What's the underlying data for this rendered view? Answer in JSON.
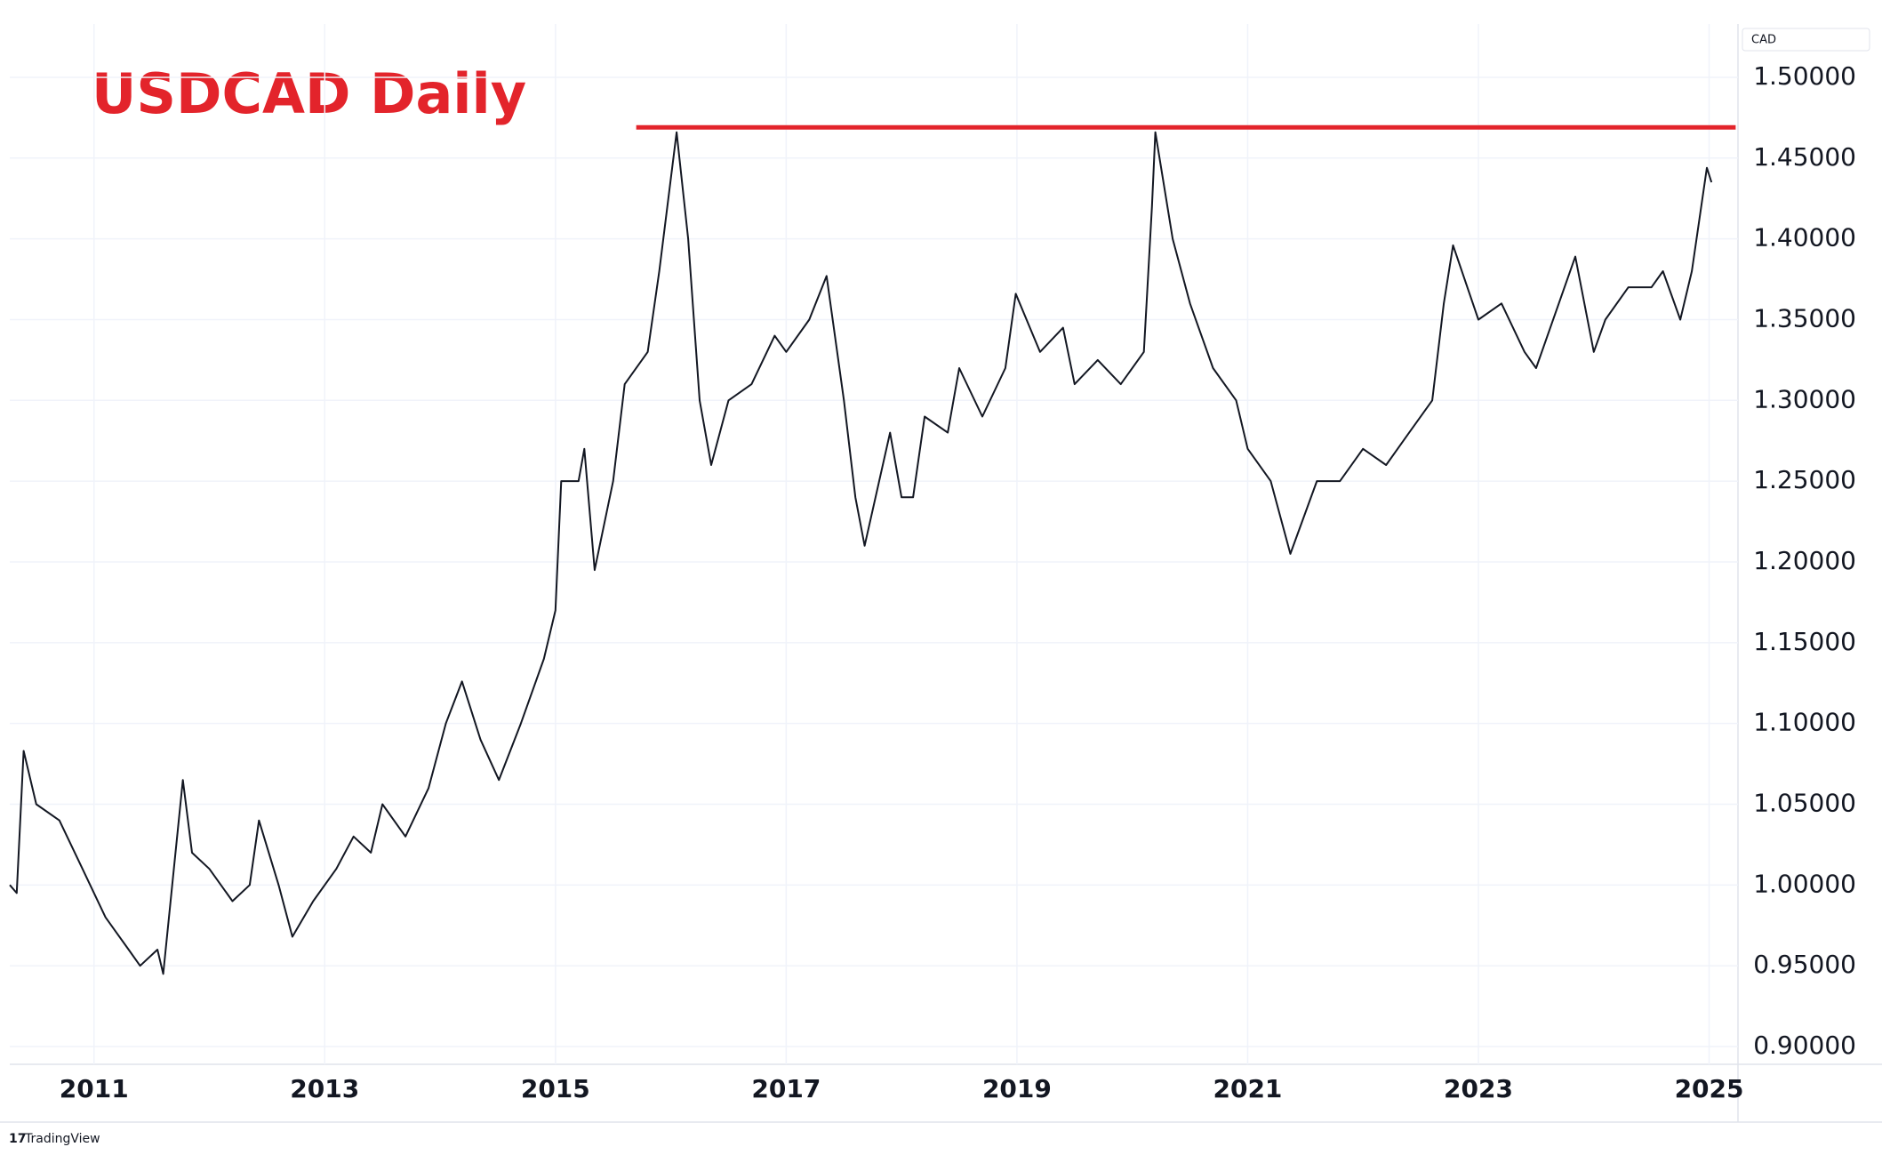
{
  "chart_data": {
    "type": "line",
    "title": "USDCAD Daily",
    "currency": "CAD",
    "watermark": "TradingView",
    "x": [
      2010.27,
      2010.33,
      2010.39,
      2010.5,
      2010.7,
      2010.9,
      2011.1,
      2011.3,
      2011.4,
      2011.55,
      2011.6,
      2011.77,
      2011.85,
      2012.0,
      2012.2,
      2012.35,
      2012.43,
      2012.6,
      2012.72,
      2012.9,
      2013.1,
      2013.25,
      2013.4,
      2013.5,
      2013.7,
      2013.9,
      2014.05,
      2014.19,
      2014.35,
      2014.51,
      2014.7,
      2014.9,
      2015.0,
      2015.05,
      2015.2,
      2015.25,
      2015.34,
      2015.5,
      2015.6,
      2015.8,
      2015.9,
      2016.05,
      2016.15,
      2016.25,
      2016.35,
      2016.5,
      2016.7,
      2016.9,
      2017.0,
      2017.2,
      2017.35,
      2017.5,
      2017.6,
      2017.68,
      2017.9,
      2018.0,
      2018.1,
      2018.2,
      2018.4,
      2018.5,
      2018.7,
      2018.9,
      2018.99,
      2019.2,
      2019.4,
      2019.5,
      2019.7,
      2019.9,
      2020.1,
      2020.17,
      2020.2,
      2020.35,
      2020.5,
      2020.7,
      2020.9,
      2021.0,
      2021.2,
      2021.37,
      2021.6,
      2021.8,
      2022.0,
      2022.2,
      2022.4,
      2022.6,
      2022.7,
      2022.78,
      2023.0,
      2023.2,
      2023.4,
      2023.5,
      2023.84,
      2024.0,
      2024.1,
      2024.3,
      2024.5,
      2024.6,
      2024.75,
      2024.85,
      2024.98,
      2025.02
    ],
    "values": [
      1.0,
      0.995,
      1.083,
      1.05,
      1.04,
      1.01,
      0.98,
      0.96,
      0.95,
      0.96,
      0.945,
      1.065,
      1.02,
      1.01,
      0.99,
      1.0,
      1.04,
      1.0,
      0.968,
      0.99,
      1.01,
      1.03,
      1.02,
      1.05,
      1.03,
      1.06,
      1.1,
      1.126,
      1.09,
      1.065,
      1.1,
      1.14,
      1.17,
      1.25,
      1.25,
      1.27,
      1.195,
      1.25,
      1.31,
      1.33,
      1.38,
      1.466,
      1.4,
      1.3,
      1.26,
      1.3,
      1.31,
      1.34,
      1.33,
      1.35,
      1.377,
      1.3,
      1.24,
      1.21,
      1.28,
      1.24,
      1.24,
      1.29,
      1.28,
      1.32,
      1.29,
      1.32,
      1.366,
      1.33,
      1.345,
      1.31,
      1.325,
      1.31,
      1.33,
      1.42,
      1.466,
      1.4,
      1.36,
      1.32,
      1.3,
      1.27,
      1.25,
      1.205,
      1.25,
      1.25,
      1.27,
      1.26,
      1.28,
      1.3,
      1.36,
      1.396,
      1.35,
      1.36,
      1.33,
      1.32,
      1.389,
      1.33,
      1.35,
      1.37,
      1.37,
      1.38,
      1.35,
      1.38,
      1.444,
      1.435
    ],
    "color": "#131722",
    "hline": {
      "value": 1.469,
      "x": [
        2015.7,
        2025.23
      ],
      "color": "#e3242b"
    },
    "xlim": [
      2010.27,
      2025.25
    ],
    "xticks": [
      2011,
      2013,
      2015,
      2017,
      2019,
      2021,
      2023,
      2025
    ],
    "ylim": [
      0.889,
      1.533
    ],
    "yticks": [
      {
        "value": 0.9,
        "label": "0.90000"
      },
      {
        "value": 0.95,
        "label": "0.95000"
      },
      {
        "value": 1.0,
        "label": "1.00000"
      },
      {
        "value": 1.05,
        "label": "1.05000"
      },
      {
        "value": 1.1,
        "label": "1.10000"
      },
      {
        "value": 1.15,
        "label": "1.15000"
      },
      {
        "value": 1.2,
        "label": "1.20000"
      },
      {
        "value": 1.25,
        "label": "1.25000"
      },
      {
        "value": 1.3,
        "label": "1.30000"
      },
      {
        "value": 1.35,
        "label": "1.35000"
      },
      {
        "value": 1.4,
        "label": "1.40000"
      },
      {
        "value": 1.45,
        "label": "1.45000"
      },
      {
        "value": 1.5,
        "label": "1.50000"
      }
    ],
    "grid": true
  }
}
